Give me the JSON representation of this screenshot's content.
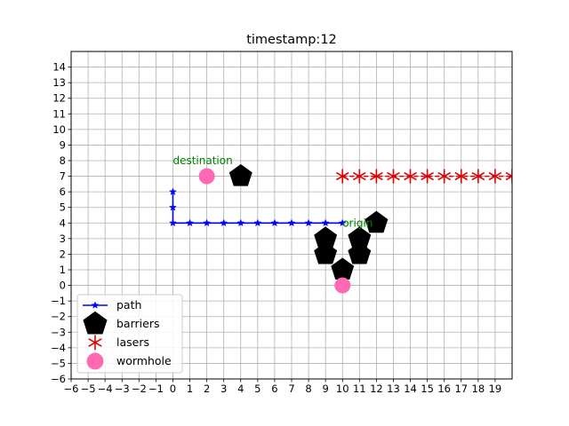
{
  "chart_data": {
    "type": "scatter",
    "title": "timestamp:12",
    "xlabel": "",
    "ylabel": "",
    "xlim": [
      -6,
      20
    ],
    "ylim": [
      -6,
      15
    ],
    "xticks": [
      -6,
      -5,
      -4,
      -3,
      -2,
      -1,
      0,
      1,
      2,
      3,
      4,
      5,
      6,
      7,
      8,
      9,
      10,
      11,
      12,
      13,
      14,
      15,
      16,
      17,
      18,
      19
    ],
    "yticks": [
      -6,
      -5,
      -4,
      -3,
      -2,
      -1,
      0,
      1,
      2,
      3,
      4,
      5,
      6,
      7,
      8,
      9,
      10,
      11,
      12,
      13,
      14
    ],
    "grid": true,
    "legend_position": "lower-left",
    "series": [
      {
        "name": "path",
        "kind": "line-star",
        "color": "#0000ff",
        "points": [
          [
            10,
            4
          ],
          [
            9,
            4
          ],
          [
            8,
            4
          ],
          [
            7,
            4
          ],
          [
            6,
            4
          ],
          [
            5,
            4
          ],
          [
            4,
            4
          ],
          [
            3,
            4
          ],
          [
            2,
            4
          ],
          [
            1,
            4
          ],
          [
            0,
            4
          ],
          [
            0,
            5
          ],
          [
            0,
            6
          ]
        ]
      },
      {
        "name": "barriers",
        "kind": "pentagon",
        "color": "#000000",
        "points": [
          [
            4,
            7
          ],
          [
            12,
            4
          ],
          [
            9,
            3
          ],
          [
            11,
            3
          ],
          [
            9,
            2
          ],
          [
            11,
            2
          ],
          [
            10,
            1
          ]
        ]
      },
      {
        "name": "lasers",
        "kind": "laser",
        "color": "#dd0000",
        "points": [
          [
            10,
            7
          ],
          [
            11,
            7
          ],
          [
            12,
            7
          ],
          [
            13,
            7
          ],
          [
            14,
            7
          ],
          [
            15,
            7
          ],
          [
            16,
            7
          ],
          [
            17,
            7
          ],
          [
            18,
            7
          ],
          [
            19,
            7
          ],
          [
            20,
            7
          ]
        ]
      },
      {
        "name": "wormhole",
        "kind": "circle",
        "color": "#ff69b4",
        "points": [
          [
            2,
            7
          ],
          [
            10,
            0
          ]
        ]
      }
    ],
    "annotations": [
      {
        "text": "destination",
        "x": 0,
        "y": 8,
        "color": "#008000"
      },
      {
        "text": "origin",
        "x": 10,
        "y": 4,
        "color": "#008000"
      }
    ]
  }
}
